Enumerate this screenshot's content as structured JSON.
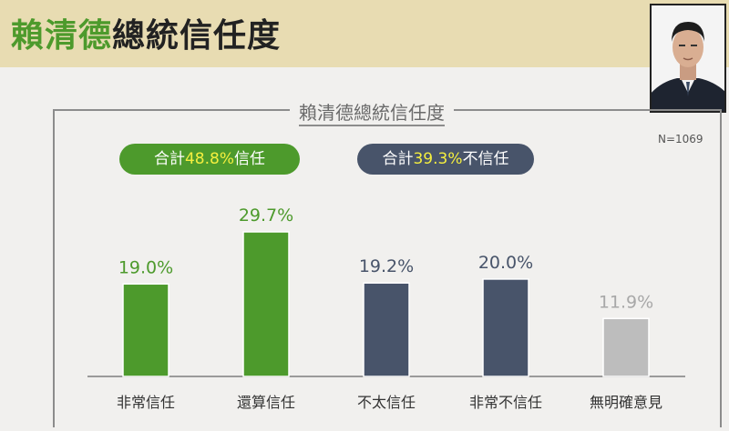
{
  "header": {
    "title_part1": "賴清德",
    "title_part2": "總統信任度",
    "title_part1_color": "#4d9a2c",
    "title_part2_color": "#222222"
  },
  "frame": {
    "title": "賴清德總統信任度",
    "sample": "N=1069"
  },
  "pills": {
    "trust": {
      "prefix": "合計",
      "value": "48.8%",
      "suffix": "信任",
      "color": "#4d9a2c"
    },
    "distrust": {
      "prefix": "合計",
      "value": "39.3%",
      "suffix": "不信任",
      "color": "#48546a"
    },
    "highlight_color": "#f5ef3f"
  },
  "chart_data": {
    "type": "bar",
    "title": "賴清德總統信任度",
    "categories": [
      "非常信任",
      "還算信任",
      "不太信任",
      "非常不信任",
      "無明確意見"
    ],
    "values": [
      19.0,
      29.7,
      19.2,
      20.0,
      11.9
    ],
    "value_labels": [
      "19.0%",
      "29.7%",
      "19.2%",
      "20.0%",
      "11.9%"
    ],
    "colors": [
      "#4d9a2c",
      "#4d9a2c",
      "#48546a",
      "#48546a",
      "#bdbdbd"
    ],
    "label_colors": [
      "#4d9a2c",
      "#4d9a2c",
      "#48546a",
      "#48546a",
      "#a8a8a8"
    ],
    "ylim": [
      0,
      35
    ],
    "grid": false,
    "legend": "none"
  }
}
